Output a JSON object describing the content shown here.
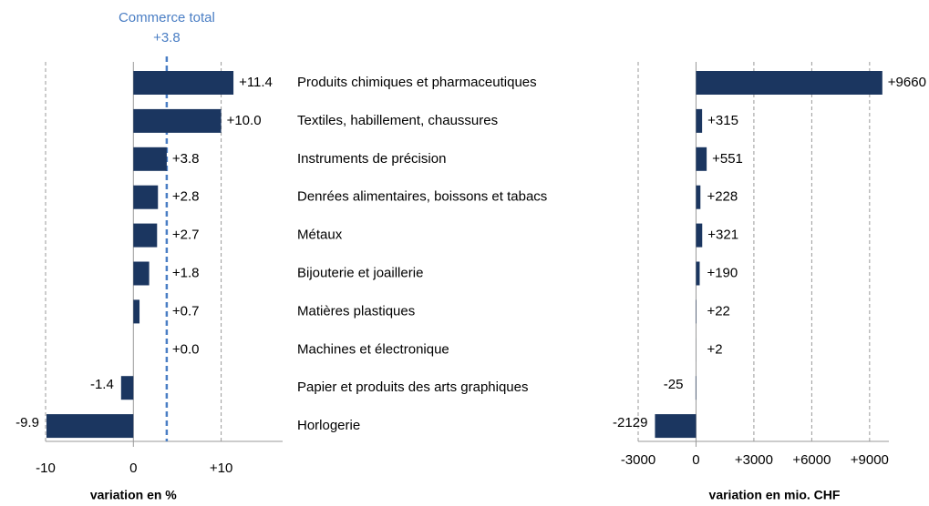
{
  "chart_data": [
    {
      "type": "barh",
      "categories": [
        "Produits chimiques et pharmaceutiques",
        "Textiles, habillement, chaussures",
        "Instruments de précision",
        "Denrées alimentaires, boissons et tabacs",
        "Métaux",
        "Bijouterie et joaillerie",
        "Matières plastiques",
        "Machines et électronique",
        "Papier et produits des arts graphiques",
        "Horlogerie"
      ],
      "values": [
        11.4,
        10.0,
        3.8,
        2.8,
        2.7,
        1.8,
        0.7,
        0.0,
        -1.4,
        -9.9
      ],
      "value_labels": [
        "+11.4",
        "+10.0",
        "+3.8",
        "+2.8",
        "+2.7",
        "+1.8",
        "+0.7",
        "+0.0",
        "-1.4",
        "-9.9"
      ],
      "color": "#1b3660",
      "xlim": [
        -10,
        17
      ],
      "xticks": [
        -10,
        0,
        {
          "value": 10,
          "label": "+10"
        }
      ],
      "xlabel": "variation en %",
      "grid": true,
      "reference": {
        "label": "Commerce total",
        "value": 3.8,
        "value_label": "+3.8",
        "color": "#4a7ec4"
      }
    },
    {
      "type": "barh",
      "values": [
        9660,
        315,
        551,
        228,
        321,
        190,
        22,
        2,
        -25,
        -2129
      ],
      "value_labels": [
        "+9660",
        "+315",
        "+551",
        "+228",
        "+321",
        "+190",
        "+22",
        "+2",
        "-25",
        "-2129"
      ],
      "color": "#1b3660",
      "xlim": [
        -3000,
        10000
      ],
      "xticks": [
        -3000,
        0,
        {
          "value": 3000,
          "label": "+3000"
        },
        {
          "value": 6000,
          "label": "+6000"
        },
        {
          "value": 9000,
          "label": "+9000"
        }
      ],
      "xlabel": "variation en mio. CHF",
      "grid": true
    }
  ]
}
